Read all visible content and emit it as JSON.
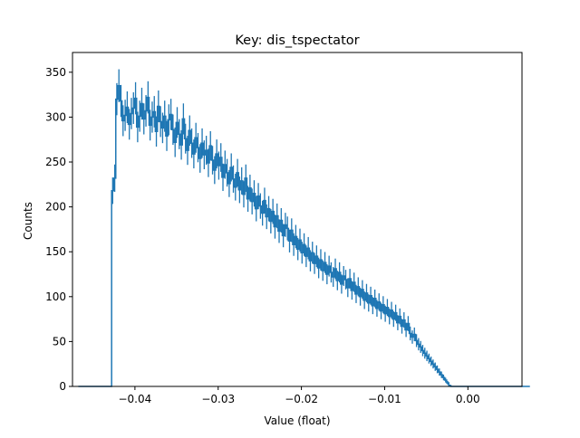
{
  "chart_data": {
    "type": "histogram",
    "title": "Key: dis_tspectator",
    "xlabel": "Value (float)",
    "ylabel": "Counts",
    "xlim": [
      -0.0475,
      0.0065
    ],
    "ylim": [
      0,
      372
    ],
    "x_ticks": [
      -0.04,
      -0.03,
      -0.02,
      -0.01,
      0.0
    ],
    "x_tick_labels": [
      "−0.04",
      "−0.03",
      "−0.02",
      "−0.01",
      "0.00"
    ],
    "y_ticks": [
      0,
      50,
      100,
      150,
      200,
      250,
      300,
      350
    ],
    "y_tick_labels": [
      "0",
      "50",
      "100",
      "150",
      "200",
      "250",
      "300",
      "350"
    ],
    "grid": false,
    "legend": "none",
    "color": "#1f77b4",
    "error_bars": "sqrt(count)",
    "bin_range": [
      -0.0468,
      0.0035
    ],
    "bin_count": 201,
    "bin_width": 0.00025,
    "counts": [
      0,
      0,
      0,
      0,
      0,
      0,
      0,
      0,
      0,
      0,
      0,
      0,
      0,
      0,
      0,
      0,
      218,
      232,
      320,
      335,
      318,
      296,
      302,
      311,
      292,
      304,
      310,
      321,
      289,
      301,
      315,
      298,
      307,
      322,
      291,
      300,
      306,
      284,
      312,
      295,
      288,
      301,
      279,
      297,
      303,
      286,
      272,
      294,
      281,
      269,
      298,
      276,
      263,
      285,
      271,
      259,
      277,
      266,
      254,
      271,
      258,
      263,
      249,
      268,
      252,
      241,
      259,
      246,
      255,
      233,
      247,
      238,
      226,
      244,
      231,
      222,
      238,
      219,
      229,
      214,
      232,
      209,
      221,
      206,
      215,
      198,
      212,
      201,
      193,
      207,
      189,
      198,
      184,
      195,
      178,
      190,
      173,
      185,
      168,
      180,
      176,
      162,
      174,
      158,
      167,
      153,
      163,
      149,
      158,
      145,
      154,
      140,
      149,
      137,
      145,
      132,
      141,
      129,
      138,
      125,
      134,
      127,
      122,
      131,
      118,
      127,
      114,
      123,
      119,
      110,
      120,
      107,
      116,
      103,
      111,
      100,
      108,
      96,
      104,
      93,
      101,
      90,
      98,
      87,
      94,
      84,
      91,
      81,
      88,
      78,
      85,
      75,
      82,
      71,
      78,
      67,
      74,
      63,
      70,
      59,
      55,
      58,
      51,
      47,
      44,
      40,
      37,
      34,
      31,
      28,
      25,
      22,
      19,
      16,
      13,
      10,
      7,
      4,
      1,
      0,
      0,
      0,
      0,
      0,
      0,
      0,
      0,
      0,
      0,
      0,
      0,
      0,
      0,
      0,
      0,
      0,
      0,
      0,
      0,
      0,
      0,
      0,
      0,
      0,
      0,
      0,
      0,
      0,
      0,
      0,
      0,
      0,
      0,
      0,
      0,
      0,
      0
    ]
  }
}
